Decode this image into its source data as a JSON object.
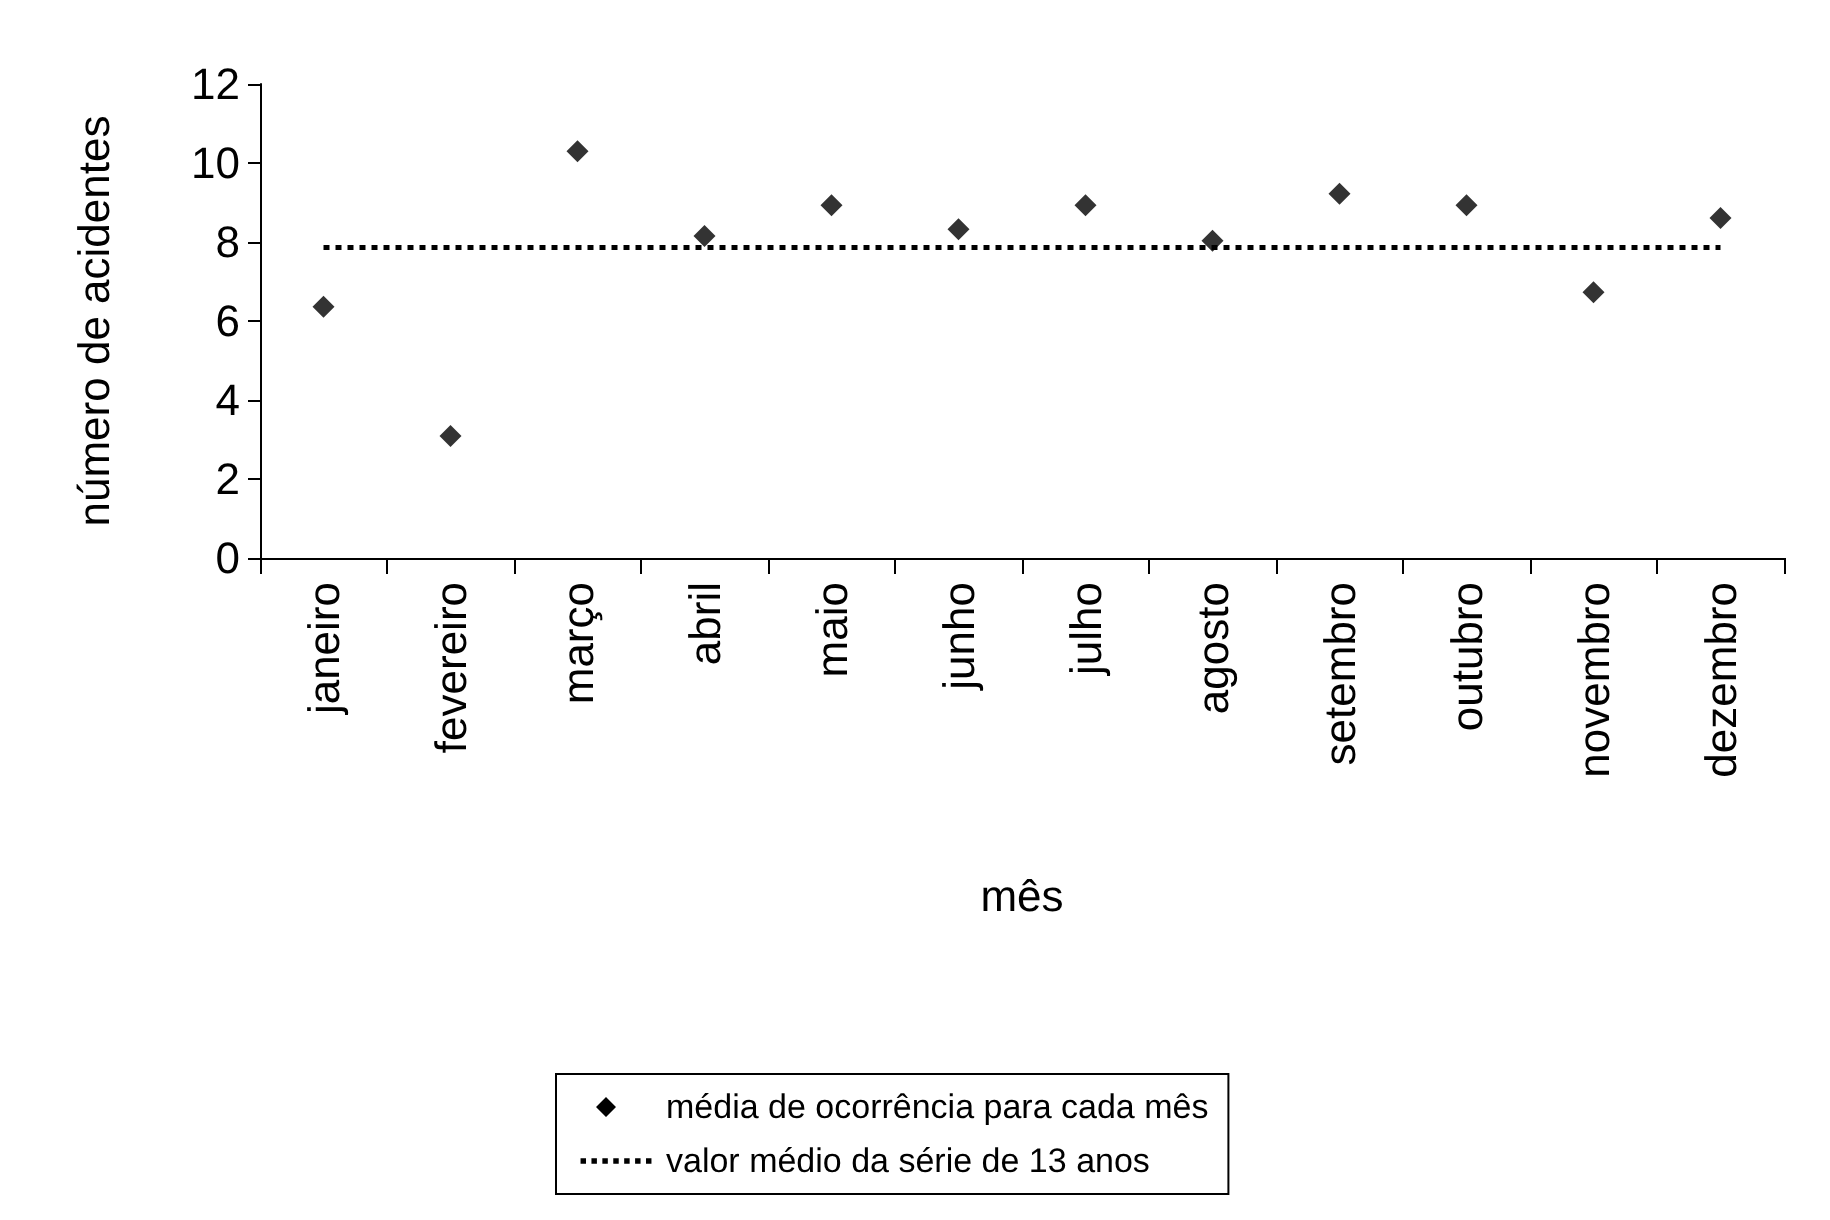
{
  "chart_data": {
    "type": "scatter",
    "xlabel": "mês",
    "ylabel": "número de acidentes",
    "categories": [
      "janeiro",
      "fevereiro",
      "março",
      "abril",
      "maio",
      "junho",
      "julho",
      "agosto",
      "setembro",
      "outubro",
      "novembro",
      "dezembro"
    ],
    "series": [
      {
        "name": "média de ocorrência para cada mês",
        "color": "#000000",
        "values": [
          6.36,
          3.09,
          10.3,
          8.15,
          8.93,
          8.32,
          8.93,
          8.03,
          9.22,
          8.93,
          6.73,
          8.61
        ]
      }
    ],
    "marker": "diamond",
    "ylim": [
      0,
      12
    ],
    "yticks": [
      0,
      2,
      4,
      6,
      8,
      10,
      12
    ],
    "grid": false,
    "legend": "bottom",
    "ref_lines": [
      {
        "axis": "y",
        "value": 7.86,
        "label": "valor médio da série de 13 anos",
        "color": "#000000",
        "line_style": "dotted"
      }
    ]
  }
}
